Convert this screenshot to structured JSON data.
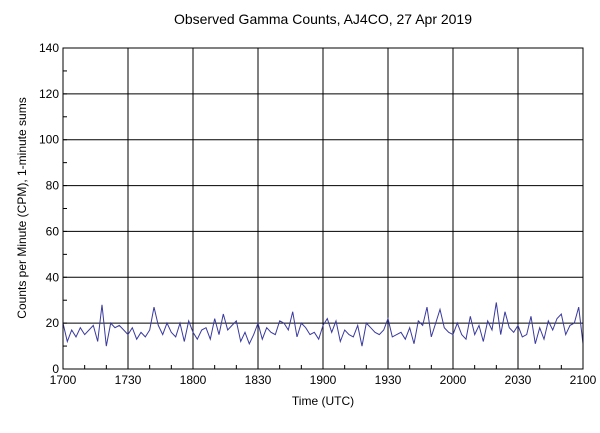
{
  "chart_data": {
    "type": "line",
    "title": "Observed Gamma Counts, AJ4CO, 27 Apr 2019",
    "xlabel": "Time (UTC)",
    "ylabel": "Counts per Minute (CPM), 1-minute sums",
    "x_tick_labels": [
      "1700",
      "1730",
      "1800",
      "1830",
      "1900",
      "1930",
      "2000",
      "2030",
      "2100"
    ],
    "y_ticks": [
      0,
      20,
      40,
      60,
      80,
      100,
      120,
      140
    ],
    "ylim": [
      0,
      140
    ],
    "x_minutes_range": [
      0,
      240
    ],
    "x_step_minutes": 2,
    "grid": true,
    "line_color": "#3a3aa0",
    "series": [
      {
        "name": "CPM",
        "values": [
          20,
          12,
          17,
          14,
          18,
          15,
          17,
          19,
          12,
          28,
          10,
          20,
          18,
          19,
          17,
          15,
          18,
          13,
          16,
          14,
          17,
          27,
          19,
          15,
          20,
          16,
          14,
          20,
          12,
          21,
          16,
          13,
          17,
          18,
          13,
          22,
          15,
          24,
          17,
          19,
          21,
          12,
          16,
          11,
          15,
          20,
          13,
          18,
          16,
          15,
          21,
          20,
          17,
          25,
          14,
          20,
          18,
          15,
          16,
          13,
          19,
          22,
          16,
          21,
          12,
          17,
          15,
          14,
          19,
          10,
          20,
          18,
          16,
          15,
          17,
          22,
          14,
          15,
          16,
          13,
          18,
          11,
          21,
          19,
          27,
          14,
          20,
          26,
          18,
          16,
          15,
          20,
          15,
          13,
          23,
          15,
          19,
          12,
          21,
          17,
          29,
          15,
          25,
          18,
          16,
          19,
          14,
          15,
          23,
          11,
          18,
          13,
          21,
          17,
          22,
          24,
          15,
          19,
          20,
          27,
          11
        ]
      }
    ]
  }
}
